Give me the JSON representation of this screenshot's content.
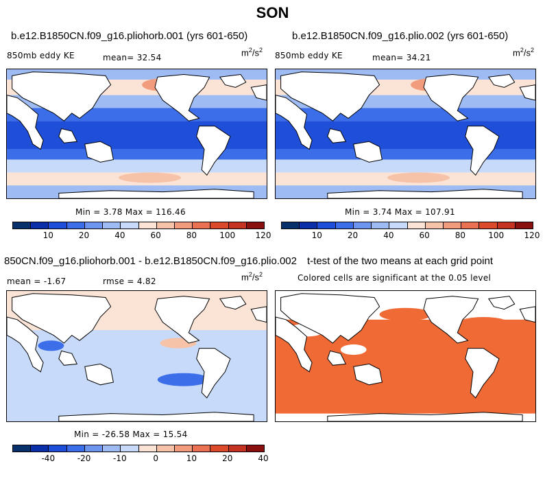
{
  "title": "SON",
  "panels": [
    {
      "title": "b.e12.B1850CN.f09_g16.pliohorb.001 (yrs 601-650)",
      "left_label": "850mb eddy KE",
      "mid_label": "mean=  32.54",
      "unit_base": "m",
      "unit_exp1": "2",
      "unit_sep": "/s",
      "unit_exp2": "2",
      "stats": "Min =   3.78 Max = 116.46",
      "colorbar_labels": [
        "10",
        "20",
        "40",
        "60",
        "80",
        "100",
        "120"
      ],
      "field": "eddy_ke"
    },
    {
      "title": "b.e12.B1850CN.f09_g16.plio.002 (yrs 601-650)",
      "left_label": "850mb eddy KE",
      "mid_label": "mean=  34.21",
      "unit_base": "m",
      "unit_exp1": "2",
      "unit_sep": "/s",
      "unit_exp2": "2",
      "stats": "Min =   3.74 Max = 107.91",
      "colorbar_labels": [
        "10",
        "20",
        "40",
        "60",
        "80",
        "100",
        "120"
      ],
      "field": "eddy_ke"
    },
    {
      "title": "850CN.f09_g16.pliohorb.001 - b.e12.B1850CN.f09_g16.plio.002",
      "left_label": "mean =  -1.67",
      "mid_label": "rmse =   4.82",
      "unit_base": "m",
      "unit_exp1": "2",
      "unit_sep": "/s",
      "unit_exp2": "2",
      "stats": "Min = -26.58 Max =  15.54",
      "colorbar_labels": [
        "-40",
        "-20",
        "-10",
        "0",
        "10",
        "20",
        "40"
      ],
      "field": "difference"
    },
    {
      "title": "t-test of the two means at each grid point",
      "subtitle": "Colored cells are significant at the 0.05 level",
      "field": "significance"
    }
  ],
  "colorbar_colors": [
    "#08306b",
    "#0b2fa8",
    "#1f4fd8",
    "#3b6ee8",
    "#6d95ef",
    "#9ebbf4",
    "#c7dafa",
    "#fbe3d6",
    "#f6c2a8",
    "#f19c7c",
    "#ea7252",
    "#dc4a2c",
    "#c43222",
    "#8a1010"
  ],
  "map_colors": {
    "land": "#ffffff",
    "coast": "#000000",
    "significance_fill": "#ef6a35",
    "strong_blue": "#1f4fd8",
    "mid_blue": "#3b6ee8",
    "light_blue": "#9ebbf4",
    "pale_blue": "#c7dafa",
    "pale_red": "#fbe3d6",
    "light_red": "#f6c2a8",
    "mid_red": "#f19c7c"
  }
}
